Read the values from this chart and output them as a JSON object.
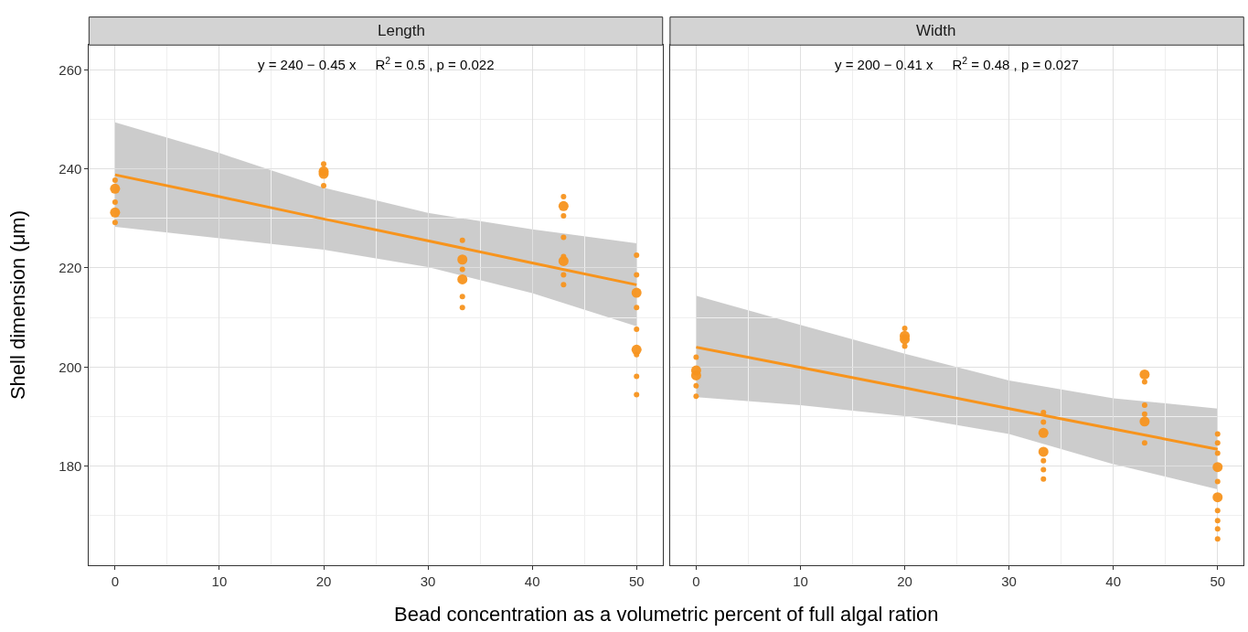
{
  "chart_data": [
    {
      "type": "scatter",
      "title": "Length",
      "xlabel": "Bead concentration as a volumetric percent of full algal ration",
      "ylabel": "Shell dimension (μm)",
      "xlim": [
        -2.5,
        52.5
      ],
      "ylim": [
        160,
        265
      ],
      "xticks": [
        0,
        10,
        20,
        30,
        40,
        50
      ],
      "yticks": [
        180,
        200,
        220,
        240,
        260
      ],
      "grid": true,
      "marker": "circle",
      "annotations": [
        "y = 240 − 0.45 x     R$^{2}$ = 0.5 , p = 0.022"
      ],
      "series": [
        {
          "color": "#f7941d",
          "x": [
            0,
            0,
            20,
            20,
            33.3,
            33.3,
            43,
            43,
            50,
            50
          ],
          "values": [
            236.0,
            231.2,
            239.5,
            239.0,
            221.7,
            217.7,
            232.5,
            221.4,
            215.0,
            203.5
          ]
        },
        {
          "color": "#f7941d",
          "x": [
            0,
            0,
            0,
            20,
            20,
            33.3,
            33.3,
            33.3,
            33.3,
            43,
            43,
            43,
            43,
            43,
            43,
            50,
            50,
            50,
            50,
            50,
            50,
            50
          ],
          "values": [
            237.7,
            233.3,
            229.2,
            241.0,
            236.6,
            225.6,
            219.7,
            214.2,
            212.0,
            234.4,
            230.5,
            226.2,
            222.3,
            218.6,
            216.6,
            222.6,
            218.6,
            212.0,
            207.6,
            202.5,
            198.1,
            194.4
          ]
        },
        {
          "type": "line",
          "marker": "none",
          "color": "#f7941d",
          "x": [
            0,
            10,
            20,
            30,
            40,
            50
          ],
          "values": [
            238.8,
            234.4,
            229.9,
            225.5,
            221.0,
            216.6
          ],
          "lower": [
            228.3,
            226.0,
            223.7,
            220.2,
            214.9,
            208.2
          ],
          "upper": [
            249.4,
            243.2,
            236.2,
            231.1,
            227.8,
            225.0
          ]
        }
      ]
    },
    {
      "type": "scatter",
      "title": "Width",
      "xlim": [
        -2.5,
        52.5
      ],
      "ylim": [
        160,
        265
      ],
      "xticks": [
        0,
        10,
        20,
        30,
        40,
        50
      ],
      "yticks": [
        180,
        200,
        220,
        240,
        260
      ],
      "grid": true,
      "marker": "circle",
      "tick_labels": "x",
      "annotations": [
        "y = 200 − 0.41 x     R$^{2}$ = 0.48 , p = 0.027"
      ],
      "series": [
        {
          "color": "#f7941d",
          "x": [
            0,
            0,
            20,
            20,
            33.3,
            33.3,
            43,
            43,
            50,
            50
          ],
          "values": [
            199.3,
            198.3,
            206.3,
            205.6,
            186.7,
            182.9,
            198.5,
            189.0,
            179.8,
            173.7
          ]
        },
        {
          "color": "#f7941d",
          "x": [
            0,
            0,
            0,
            20,
            20,
            33.3,
            33.3,
            33.3,
            33.3,
            33.3,
            43,
            43,
            43,
            43,
            50,
            50,
            50,
            50,
            50,
            50,
            50,
            50
          ],
          "values": [
            202.0,
            196.2,
            194.1,
            207.8,
            204.2,
            190.8,
            188.9,
            181.1,
            179.3,
            177.4,
            197.0,
            192.3,
            190.5,
            184.7,
            186.5,
            184.7,
            182.6,
            176.9,
            171.0,
            169.0,
            167.3,
            165.3
          ]
        },
        {
          "type": "line",
          "marker": "none",
          "color": "#f7941d",
          "x": [
            0,
            10,
            20,
            30,
            40,
            50
          ],
          "values": [
            204.0,
            199.9,
            195.8,
            191.6,
            187.5,
            183.4
          ],
          "lower": [
            193.9,
            192.3,
            190.1,
            186.5,
            180.4,
            175.3
          ],
          "upper": [
            214.4,
            208.5,
            202.7,
            197.3,
            193.7,
            191.6
          ]
        }
      ]
    }
  ]
}
